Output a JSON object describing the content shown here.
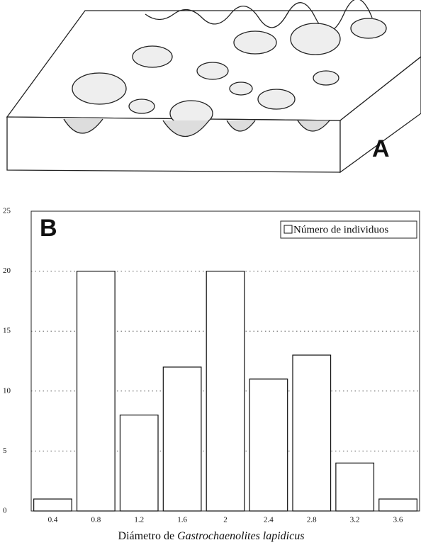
{
  "figure": {
    "panel_a_label": "A"
  },
  "chart_data": {
    "type": "bar",
    "panel_label": "B",
    "categories": [
      "0.4",
      "0.8",
      "1.2",
      "1.6",
      "2",
      "2.4",
      "2.8",
      "3.2",
      "3.6"
    ],
    "series": [
      {
        "name": "Número de individuos",
        "color": "#ffffff",
        "values": [
          1,
          20,
          8,
          12,
          20,
          11,
          13,
          4,
          1
        ]
      }
    ],
    "ylim": [
      0,
      25
    ],
    "yticks": [
      0,
      5,
      10,
      15,
      20,
      25
    ],
    "grid": true,
    "legend": "upper right",
    "xlabel": {
      "text": "Diámetro de ",
      "italic": "Gastrochaenolites lapidicus"
    }
  }
}
